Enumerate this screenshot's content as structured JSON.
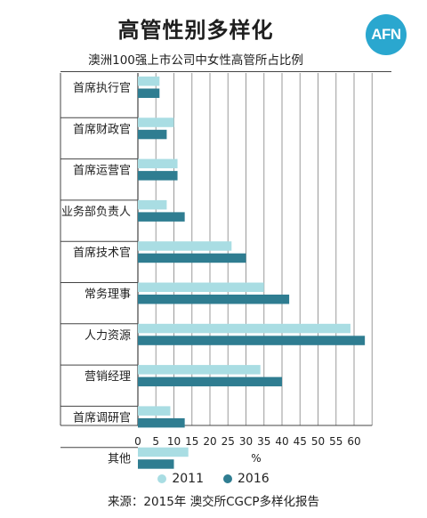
{
  "title": "高管性别多样化",
  "subtitle": "澳洲100强上市公司中女性高管所占比例",
  "logo_text": "AFN",
  "source": "来源：2015年 澳交所CGCP多样化报告",
  "colors": {
    "series_2011": "#a9dde3",
    "series_2016": "#2f7d91",
    "logo": "#2aa7cf"
  },
  "chart_data": {
    "type": "bar",
    "orientation": "horizontal",
    "categories": [
      "首席执行官",
      "首席财政官",
      "首席运营官",
      "业务部负责人",
      "首席技术官",
      "常务理事",
      "人力资源",
      "营销经理",
      "首席调研官",
      "其他"
    ],
    "series": [
      {
        "name": "2011",
        "values": [
          6,
          10,
          11,
          8,
          26,
          35,
          59,
          34,
          9,
          14
        ]
      },
      {
        "name": "2016",
        "values": [
          6,
          8,
          11,
          13,
          30,
          42,
          63,
          40,
          13,
          10
        ]
      }
    ],
    "xticks": [
      "0",
      "5",
      "10",
      "15",
      "20",
      "25",
      "30",
      "35",
      "40",
      "45",
      "50",
      "55",
      "60"
    ],
    "xlabel": "%",
    "xlim": [
      0,
      65
    ],
    "grid": true,
    "legend": "bottom"
  }
}
